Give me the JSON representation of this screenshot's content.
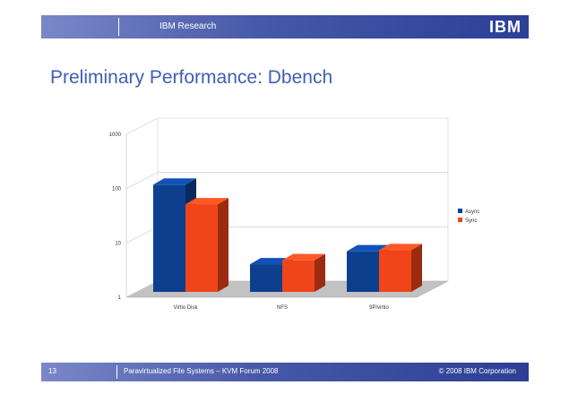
{
  "header": {
    "title": "IBM Research",
    "logo_text": "IBM"
  },
  "slide": {
    "title": "Preliminary Performance: Dbench"
  },
  "footer": {
    "page_number": "13",
    "text": "Paravirtualized File Systems – KVM Forum 2008",
    "copyright": "© 2008 IBM Corporation"
  },
  "colors": {
    "band_dark": "#2c3f95",
    "band_light": "#7a88c8",
    "title": "#3f5fb4",
    "async": "#0d3f8f",
    "sync": "#f0441a"
  },
  "chart_data": {
    "type": "bar",
    "categories": [
      "Virtio Disk",
      "NFS",
      "9P/virtio"
    ],
    "series": [
      {
        "name": "Async",
        "values": [
          160,
          5.5,
          9.5
        ],
        "color": "#0d3f8f"
      },
      {
        "name": "Sync",
        "values": [
          70,
          6.5,
          10
        ],
        "color": "#f0441a"
      }
    ],
    "y_scale": "log",
    "ylim": [
      1,
      1000
    ],
    "y_ticks": [
      "1",
      "10",
      "100",
      "1000"
    ],
    "grid": true,
    "legend_position": "right",
    "title": "",
    "xlabel": "",
    "ylabel": ""
  }
}
